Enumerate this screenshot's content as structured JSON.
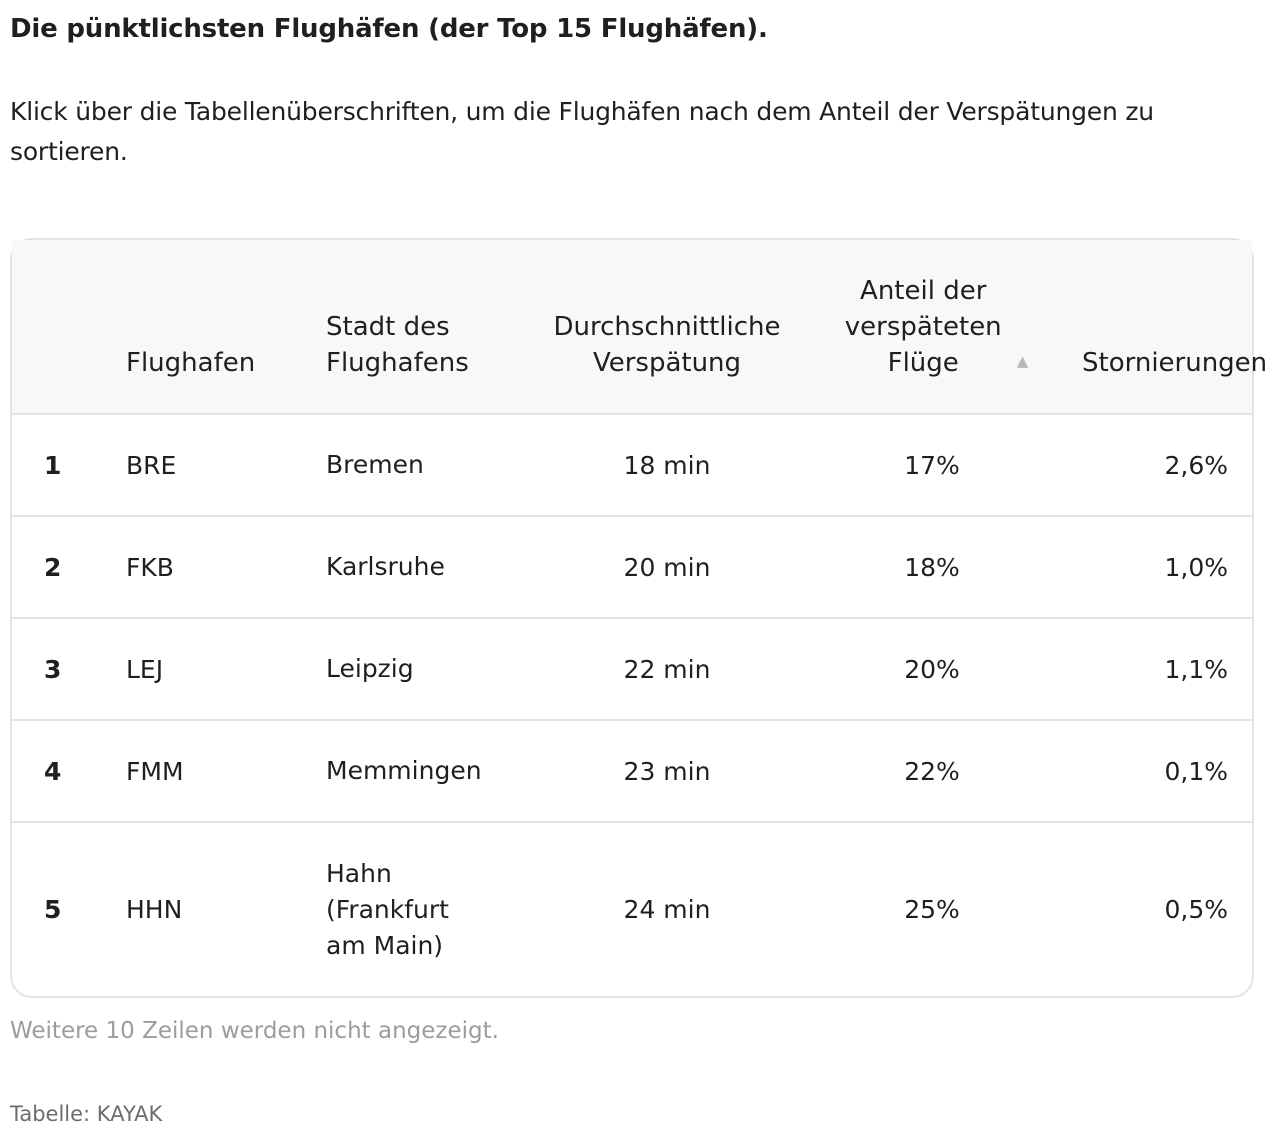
{
  "title": "Die pünktlichsten Flughäfen (der Top 15 Flughäfen).",
  "intro": "Klick über die Tabellenüberschriften, um die Flughäfen nach dem Anteil der Verspätungen zu sortieren.",
  "table": {
    "headers": {
      "rank": "",
      "airport": "Flughafen",
      "city": "Stadt des Flughafens",
      "avg_delay": "Durchschnittliche Verspätung",
      "delayed_share": "Anteil der verspäteten Flüge",
      "cancellations": "Stornierungen"
    },
    "sort_icon": "sort-ascending-icon",
    "rows": [
      {
        "rank": "1",
        "airport": "BRE",
        "city": "Bremen",
        "avg_delay": "18 min",
        "delayed_share": "17%",
        "cancellations": "2,6%"
      },
      {
        "rank": "2",
        "airport": "FKB",
        "city": "Karlsruhe",
        "avg_delay": "20 min",
        "delayed_share": "18%",
        "cancellations": "1,0%"
      },
      {
        "rank": "3",
        "airport": "LEJ",
        "city": "Leipzig",
        "avg_delay": "22 min",
        "delayed_share": "20%",
        "cancellations": "1,1%"
      },
      {
        "rank": "4",
        "airport": "FMM",
        "city": "Memmingen",
        "avg_delay": "23 min",
        "delayed_share": "22%",
        "cancellations": "0,1%"
      },
      {
        "rank": "5",
        "airport": "HHN",
        "city": "Hahn (Frankfurt am Main)",
        "avg_delay": "24 min",
        "delayed_share": "25%",
        "cancellations": "0,5%"
      }
    ]
  },
  "note": "Weitere 10 Zeilen werden nicht angezeigt.",
  "source": "Tabelle: KAYAK",
  "colors": {
    "header_bg": "#f7f8f9",
    "border": "#e2e3e5",
    "text": "#1f1f1f",
    "muted": "#9a9ca0"
  }
}
